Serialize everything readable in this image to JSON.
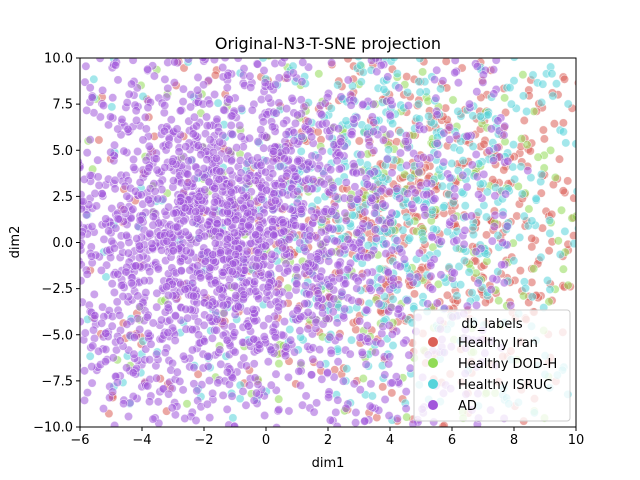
{
  "chart_data": {
    "type": "scatter",
    "title": "Original-N3-T-SNE projection",
    "xlabel": "dim1",
    "ylabel": "dim2",
    "xlim": [
      -6,
      10
    ],
    "ylim": [
      -10,
      10
    ],
    "xticks": [
      -6,
      -4,
      -2,
      0,
      2,
      4,
      6,
      8,
      10
    ],
    "yticks": [
      -10.0,
      -7.5,
      -5.0,
      -2.5,
      0.0,
      2.5,
      5.0,
      7.5,
      10.0
    ],
    "xtick_labels": [
      "−6",
      "−4",
      "−2",
      "0",
      "2",
      "4",
      "6",
      "8",
      "10"
    ],
    "ytick_labels": [
      "−10.0",
      "−7.5",
      "−5.0",
      "−2.5",
      "0.0",
      "2.5",
      "5.0",
      "7.5",
      "10.0"
    ],
    "grid": false,
    "legend": {
      "title": "db_labels",
      "placement": "lower-right",
      "entries": [
        "Healthy Iran",
        "Healthy DOD-H",
        "Healthy ISRUC",
        "AD"
      ]
    },
    "point_opacity": 0.55,
    "series": [
      {
        "name": "Healthy Iran",
        "color": "#db5f57",
        "distribution": {
          "center": [
            5.5,
            1.5
          ],
          "spread": [
            2.8,
            5.0
          ]
        }
      },
      {
        "name": "Healthy DOD-H",
        "color": "#91db57",
        "distribution": {
          "center": [
            4.0,
            2.0
          ],
          "spread": [
            3.2,
            5.0
          ]
        }
      },
      {
        "name": "Healthy ISRUC",
        "color": "#57d3db",
        "distribution": {
          "center": [
            4.5,
            2.5
          ],
          "spread": [
            3.0,
            4.5
          ]
        }
      },
      {
        "name": "AD",
        "color": "#a157db",
        "distribution": {
          "center": [
            -1.5,
            0.5
          ],
          "spread": [
            2.6,
            4.2
          ]
        }
      }
    ]
  }
}
